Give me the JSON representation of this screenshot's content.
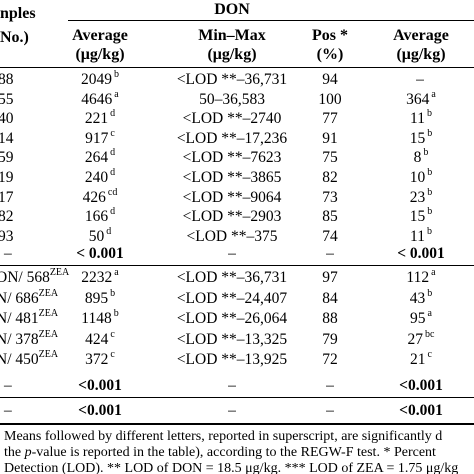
{
  "header": {
    "samples_line1": "nples",
    "samples_line2": "No.)",
    "group": "DON",
    "average": "Average",
    "average_unit": "(μg/kg)",
    "minmax": "Min–Max",
    "minmax_unit": "(μg/kg)",
    "pos": "Pos *",
    "pos_unit": "(%)",
    "average2": "Average",
    "average2_unit": "(μg/kg)"
  },
  "rows1": [
    {
      "n": "88",
      "avg": "2049",
      "avg_sup": "b",
      "mm": "<LOD **–36,731",
      "pos": "94",
      "avg2": "–",
      "avg2_sup": ""
    },
    {
      "n": "55",
      "avg": "4646",
      "avg_sup": "a",
      "mm": "50–36,583",
      "pos": "100",
      "avg2": "364",
      "avg2_sup": "a"
    },
    {
      "n": "40",
      "avg": "221",
      "avg_sup": "d",
      "mm": "<LOD **–2740",
      "pos": "77",
      "avg2": "11",
      "avg2_sup": "b"
    },
    {
      "n": "14",
      "avg": "917",
      "avg_sup": "c",
      "mm": "<LOD **–17,236",
      "pos": "91",
      "avg2": "15",
      "avg2_sup": "b"
    },
    {
      "n": "59",
      "avg": "264",
      "avg_sup": "d",
      "mm": "<LOD **–7623",
      "pos": "75",
      "avg2": "8",
      "avg2_sup": "b"
    },
    {
      "n": "19",
      "avg": "240",
      "avg_sup": "d",
      "mm": "<LOD **–3865",
      "pos": "82",
      "avg2": "10",
      "avg2_sup": "b"
    },
    {
      "n": "17",
      "avg": "426",
      "avg_sup": "cd",
      "mm": "<LOD **–9064",
      "pos": "73",
      "avg2": "23",
      "avg2_sup": "b"
    },
    {
      "n": "82",
      "avg": "166",
      "avg_sup": "d",
      "mm": "<LOD **–2903",
      "pos": "85",
      "avg2": "15",
      "avg2_sup": "b"
    },
    {
      "n": "93",
      "avg": "50",
      "avg_sup": "d",
      "mm": "<LOD **–375",
      "pos": "74",
      "avg2": "11",
      "avg2_sup": "b"
    }
  ],
  "pvalue_row": {
    "n": "–",
    "avg": "< 0.001",
    "mm": "–",
    "pos": "–",
    "avg2": "< 0.001"
  },
  "rows2": [
    {
      "n_pre": "ON",
      "n_mid": "/ 568",
      "n_sup": "ZEA",
      "avg": "2232",
      "avg_sup": "a",
      "mm": "<LOD **–36,731",
      "pos": "97",
      "avg2": "112",
      "avg2_sup": "a"
    },
    {
      "n_pre": "N",
      "n_mid": "/ 686",
      "n_sup": "ZEA",
      "avg": "895",
      "avg_sup": "b",
      "mm": "<LOD **–24,407",
      "pos": "84",
      "avg2": "43",
      "avg2_sup": "b"
    },
    {
      "n_pre": "N",
      "n_mid": "/ 481",
      "n_sup": "ZEA",
      "avg": "1148",
      "avg_sup": "b",
      "mm": "<LOD **–26,064",
      "pos": "88",
      "avg2": "95",
      "avg2_sup": "a"
    },
    {
      "n_pre": "N",
      "n_mid": "/ 378",
      "n_sup": "ZEA",
      "avg": "424",
      "avg_sup": "c",
      "mm": "<LOD **–13,325",
      "pos": "79",
      "avg2": "27",
      "avg2_sup": "bc"
    },
    {
      "n_pre": "N",
      "n_mid": "/ 450",
      "n_sup": "ZEA",
      "avg": "372",
      "avg_sup": "c",
      "mm": "<LOD **–13,925",
      "pos": "72",
      "avg2": "21",
      "avg2_sup": "c"
    }
  ],
  "pvalue_row2": {
    "n": "–",
    "avg": "<0.001",
    "mm": "–",
    "pos": "–",
    "avg2": "<0.001"
  },
  "pvalue_row3": {
    "n": "–",
    "avg": "<0.001",
    "mm": "–",
    "pos": "–",
    "avg2": "<0.001"
  },
  "footnote": {
    "line1": "Means followed by different letters, reported in superscript, are significantly d",
    "line2_pre": "the ",
    "line2_italic": "p",
    "line2_post": "-value is reported in the table), according to the REGW-F test. * Percent",
    "line3": "Detection (LOD). ** LOD of DON = 18.5 μg/kg. *** LOD of ZEA = 1.75 μg/kg"
  }
}
